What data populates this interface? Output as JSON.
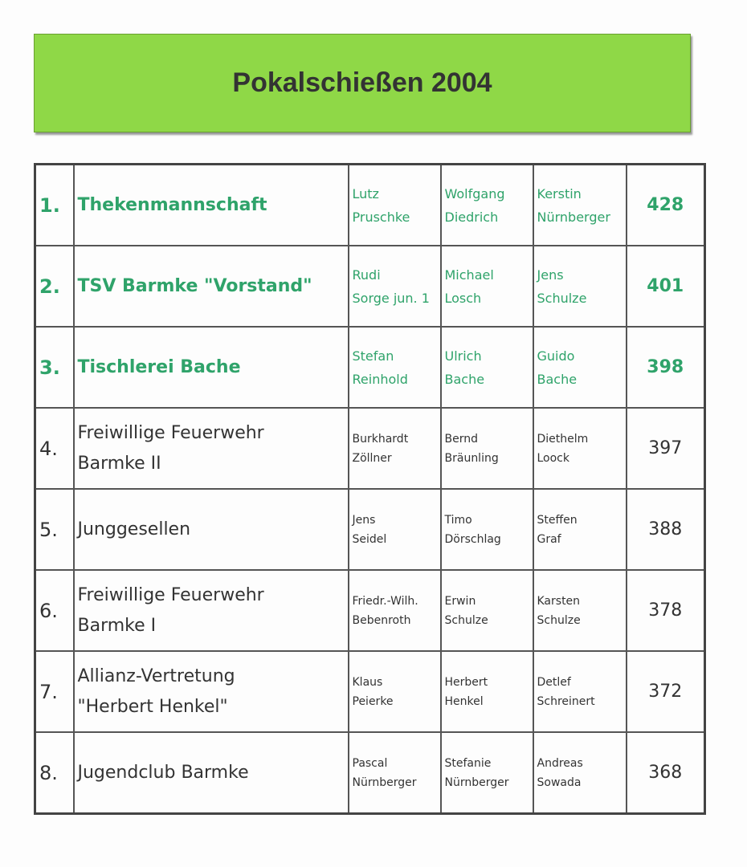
{
  "header": {
    "title": "Pokalschießen 2004"
  },
  "table": {
    "rows": [
      {
        "rank": "1.",
        "team": [
          "Thekenmannschaft"
        ],
        "members": [
          [
            "Lutz",
            "Pruschke"
          ],
          [
            "Wolfgang",
            "Diedrich"
          ],
          [
            "Kerstin",
            "Nürnberger"
          ]
        ],
        "score": 428
      },
      {
        "rank": "2.",
        "team": [
          "TSV Barmke \"Vorstand\""
        ],
        "members": [
          [
            "Rudi",
            "Sorge jun. 1"
          ],
          [
            "Michael",
            "Losch"
          ],
          [
            "Jens",
            "Schulze"
          ]
        ],
        "score": 401
      },
      {
        "rank": "3.",
        "team": [
          "Tischlerei Bache"
        ],
        "members": [
          [
            "Stefan",
            "Reinhold"
          ],
          [
            "Ulrich",
            "Bache"
          ],
          [
            "Guido",
            "Bache"
          ]
        ],
        "score": 398
      },
      {
        "rank": "4.",
        "team": [
          "Freiwillige Feuerwehr",
          "Barmke II"
        ],
        "members": [
          [
            "Burkhardt",
            "Zöllner"
          ],
          [
            "Bernd",
            "Bräunling"
          ],
          [
            "Diethelm",
            "Loock"
          ]
        ],
        "score": 397
      },
      {
        "rank": "5.",
        "team": [
          "Junggesellen"
        ],
        "members": [
          [
            "Jens",
            "Seidel"
          ],
          [
            "Timo",
            "Dörschlag"
          ],
          [
            "Steffen",
            "Graf"
          ]
        ],
        "score": 388
      },
      {
        "rank": "6.",
        "team": [
          "Freiwillige Feuerwehr",
          "Barmke I"
        ],
        "members": [
          [
            "Friedr.-Wilh.",
            "Bebenroth"
          ],
          [
            "Erwin",
            "Schulze"
          ],
          [
            "Karsten",
            "Schulze"
          ]
        ],
        "score": 378
      },
      {
        "rank": "7.",
        "team": [
          "Allianz-Vertretung",
          "\"Herbert Henkel\""
        ],
        "members": [
          [
            "Klaus",
            "Peierke"
          ],
          [
            "Herbert",
            "Henkel"
          ],
          [
            "Detlef",
            "Schreinert"
          ]
        ],
        "score": 372
      },
      {
        "rank": "8.",
        "team": [
          "Jugendclub Barmke"
        ],
        "members": [
          [
            "Pascal",
            "Nürnberger"
          ],
          [
            "Stefanie",
            "Nürnberger"
          ],
          [
            "Andreas",
            "Sowada"
          ]
        ],
        "score": 368
      }
    ]
  }
}
